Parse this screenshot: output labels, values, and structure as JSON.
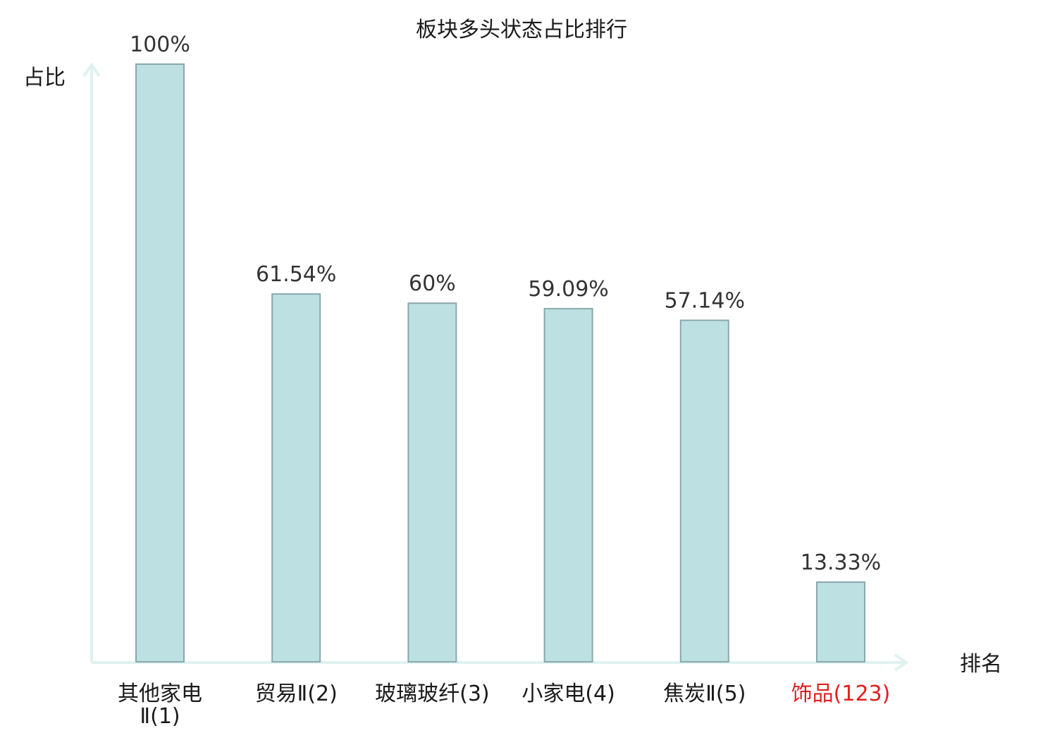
{
  "chart_data": {
    "type": "bar",
    "title": "板块多头状态占比排行",
    "ylabel": "占比",
    "xlabel": "排名",
    "ylim": [
      0,
      100
    ],
    "grid": false,
    "categories": [
      [
        "其他家电",
        "Ⅱ(1)"
      ],
      [
        "贸易Ⅱ(2)"
      ],
      [
        "玻璃玻纤(3)"
      ],
      [
        "小家电(4)"
      ],
      [
        "焦炭Ⅱ(5)"
      ],
      [
        "饰品(123)"
      ]
    ],
    "values": [
      100,
      61.54,
      60,
      59.09,
      57.14,
      13.33
    ],
    "value_labels": [
      "100%",
      "61.54%",
      "60%",
      "59.09%",
      "57.14%",
      "13.33%"
    ],
    "highlight_index": 5
  },
  "colors": {
    "bar_fill": "#bde0e3",
    "bar_stroke": "#8aa8ab",
    "axis": "#dff2f0",
    "highlight_text": "#e02020",
    "text": "#1a1a1a"
  }
}
